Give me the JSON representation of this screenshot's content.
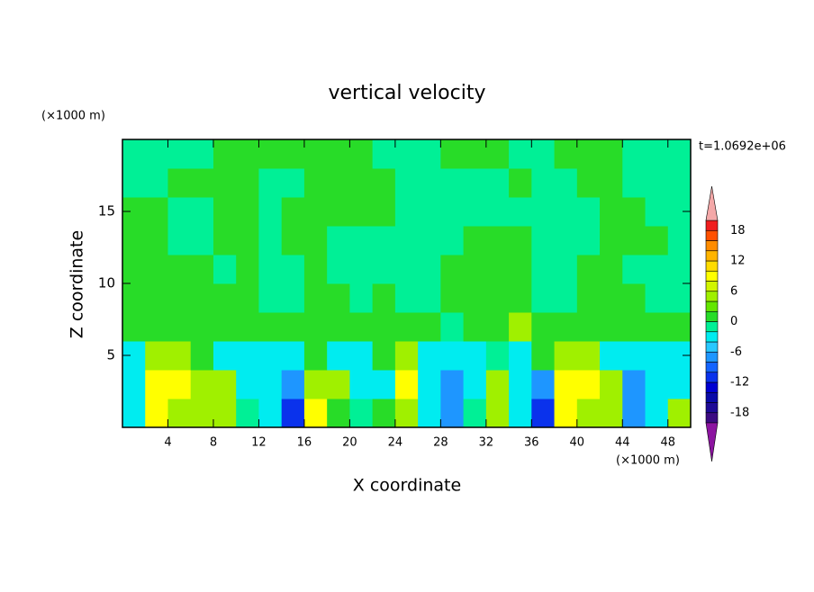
{
  "chart_data": {
    "type": "contour",
    "title": "vertical velocity",
    "xlabel": "X coordinate",
    "ylabel": "Z coordinate",
    "x_unit": "(×1000 m)",
    "y_unit": "(×1000 m)",
    "time_label": "t=1.0692e+06",
    "xlim": [
      0,
      50
    ],
    "ylim": [
      0,
      20
    ],
    "xticks": [
      4,
      8,
      12,
      16,
      20,
      24,
      28,
      32,
      36,
      40,
      44,
      48
    ],
    "yticks": [
      5,
      10,
      15
    ],
    "x": [
      1,
      3,
      5,
      7,
      9,
      11,
      13,
      15,
      17,
      19,
      21,
      23,
      25,
      27,
      29,
      31,
      33,
      35,
      37,
      39,
      41,
      43,
      45,
      47,
      49
    ],
    "y": [
      1,
      3,
      5,
      7,
      9,
      11,
      13,
      15,
      17,
      19
    ],
    "z": [
      [
        -3,
        9,
        5,
        5,
        5,
        -1,
        -3,
        -11,
        9,
        1,
        -1,
        1,
        5,
        -3,
        -7,
        -1,
        5,
        -3,
        -11,
        9,
        5,
        5,
        -7,
        -3,
        5
      ],
      [
        -3,
        9,
        9,
        5,
        5,
        -3,
        -3,
        -7,
        5,
        5,
        -3,
        -3,
        9,
        -3,
        -7,
        -3,
        5,
        -3,
        -7,
        9,
        9,
        5,
        -7,
        -3,
        -3
      ],
      [
        -3,
        5,
        5,
        1,
        -3,
        -3,
        -3,
        -3,
        1,
        -3,
        -3,
        1,
        5,
        -3,
        -3,
        -3,
        -1,
        -3,
        1,
        5,
        5,
        -3,
        -3,
        -3,
        -3
      ],
      [
        1,
        1,
        1,
        1,
        1,
        1,
        1,
        1,
        1,
        1,
        1,
        1,
        1,
        1,
        -1,
        1,
        1,
        5,
        1,
        1,
        1,
        1,
        1,
        1,
        1
      ],
      [
        1,
        1,
        1,
        1,
        1,
        1,
        -1,
        -1,
        1,
        1,
        -1,
        1,
        -1,
        -1,
        1,
        1,
        1,
        1,
        -1,
        -1,
        1,
        1,
        1,
        -1,
        -1
      ],
      [
        1,
        1,
        1,
        1,
        -1,
        1,
        -1,
        -1,
        1,
        -1,
        -1,
        -1,
        -1,
        -1,
        1,
        1,
        1,
        1,
        -1,
        -1,
        1,
        1,
        -1,
        -1,
        -1
      ],
      [
        1,
        1,
        -1,
        -1,
        1,
        1,
        -1,
        1,
        1,
        -1,
        -1,
        -1,
        -1,
        -1,
        -1,
        1,
        1,
        1,
        -1,
        -1,
        -1,
        1,
        1,
        1,
        -1
      ],
      [
        1,
        1,
        -1,
        -1,
        1,
        1,
        -1,
        1,
        1,
        1,
        1,
        1,
        -1,
        -1,
        -1,
        -1,
        -1,
        -1,
        -1,
        -1,
        -1,
        1,
        1,
        -1,
        -1
      ],
      [
        -1,
        -1,
        1,
        1,
        1,
        1,
        -1,
        -1,
        1,
        1,
        1,
        1,
        -1,
        -1,
        -1,
        -1,
        -1,
        1,
        -1,
        -1,
        1,
        1,
        -1,
        -1,
        -1
      ],
      [
        -1,
        -1,
        -1,
        -1,
        1,
        1,
        1,
        1,
        1,
        1,
        1,
        -1,
        -1,
        -1,
        1,
        1,
        1,
        -1,
        -1,
        1,
        1,
        1,
        -1,
        -1,
        -1
      ]
    ],
    "levels": [
      -20,
      -18,
      -16,
      -14,
      -12,
      -10,
      -8,
      -6,
      -4,
      -2,
      0,
      2,
      4,
      6,
      8,
      10,
      12,
      14,
      16,
      18,
      20
    ],
    "colors": [
      "#3c0a82",
      "#1e0a96",
      "#0a0aa8",
      "#0000d2",
      "#0a32ec",
      "#1464ff",
      "#1e96ff",
      "#28c8ff",
      "#00ecf0",
      "#00f096",
      "#28dc28",
      "#64e600",
      "#a0f000",
      "#d2f500",
      "#ffff00",
      "#ffdc00",
      "#ffb400",
      "#ff8c00",
      "#ff5000",
      "#f01e1e"
    ],
    "over_color": "#f4a8a8",
    "under_color": "#8c14a0",
    "colorbar_ticks": [
      -18,
      -12,
      -6,
      0,
      6,
      12,
      18
    ]
  }
}
